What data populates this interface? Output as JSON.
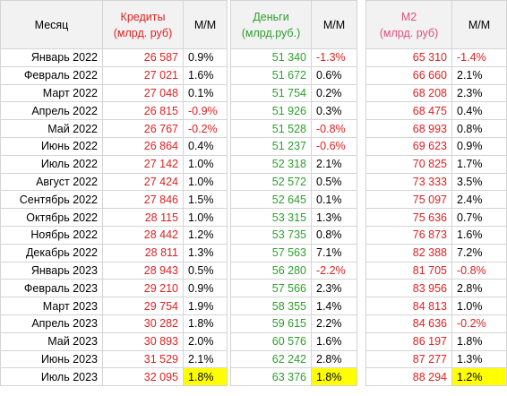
{
  "headers": {
    "month": "Месяц",
    "credits_line1": "Кредиты",
    "credits_line2": "(млрд. руб)",
    "mm": "М/М",
    "money_line1": "Деньги",
    "money_line2": "(млрд.руб.)",
    "m2_line1": "М2",
    "m2_line2": "(млрд. руб)"
  },
  "colors": {
    "credits": "#e02020",
    "money": "#2e9e2e",
    "m2": "#e0507a",
    "negative": "#e02020",
    "highlight": "#ffff00"
  },
  "rows": [
    {
      "month": "Январь 2022",
      "credits": "26 587",
      "credits_mm": "0.9%",
      "money": "51 340",
      "money_mm": "-1.3%",
      "m2": "65 310",
      "m2_mm": "-1.4%"
    },
    {
      "month": "Февраль 2022",
      "credits": "27 021",
      "credits_mm": "1.6%",
      "money": "51 672",
      "money_mm": "0.6%",
      "m2": "66 660",
      "m2_mm": "2.1%"
    },
    {
      "month": "Март 2022",
      "credits": "27 048",
      "credits_mm": "0.1%",
      "money": "51 754",
      "money_mm": "0.2%",
      "m2": "68 208",
      "m2_mm": "2.3%"
    },
    {
      "month": "Апрель 2022",
      "credits": "26 815",
      "credits_mm": "-0.9%",
      "money": "51 926",
      "money_mm": "0.3%",
      "m2": "68 475",
      "m2_mm": "0.4%"
    },
    {
      "month": "Май 2022",
      "credits": "26 767",
      "credits_mm": "-0.2%",
      "money": "51 528",
      "money_mm": "-0.8%",
      "m2": "68 993",
      "m2_mm": "0.8%"
    },
    {
      "month": "Июнь 2022",
      "credits": "26 864",
      "credits_mm": "0.4%",
      "money": "51 237",
      "money_mm": "-0.6%",
      "m2": "69 623",
      "m2_mm": "0.9%"
    },
    {
      "month": "Июль 2022",
      "credits": "27 142",
      "credits_mm": "1.0%",
      "money": "52 318",
      "money_mm": "2.1%",
      "m2": "70 825",
      "m2_mm": "1.7%"
    },
    {
      "month": "Август 2022",
      "credits": "27 424",
      "credits_mm": "1.0%",
      "money": "52 572",
      "money_mm": "0.5%",
      "m2": "73 333",
      "m2_mm": "3.5%"
    },
    {
      "month": "Сентябрь 2022",
      "credits": "27 846",
      "credits_mm": "1.5%",
      "money": "52 645",
      "money_mm": "0.1%",
      "m2": "75 097",
      "m2_mm": "2.4%"
    },
    {
      "month": "Октябрь 2022",
      "credits": "28 115",
      "credits_mm": "1.0%",
      "money": "53 315",
      "money_mm": "1.3%",
      "m2": "75 636",
      "m2_mm": "0.7%"
    },
    {
      "month": "Ноябрь 2022",
      "credits": "28 442",
      "credits_mm": "1.2%",
      "money": "53 735",
      "money_mm": "0.8%",
      "m2": "76 873",
      "m2_mm": "1.6%"
    },
    {
      "month": "Декабрь 2022",
      "credits": "28 811",
      "credits_mm": "1.3%",
      "money": "57 563",
      "money_mm": "7.1%",
      "m2": "82 388",
      "m2_mm": "7.2%"
    },
    {
      "month": "Январь 2023",
      "credits": "28 943",
      "credits_mm": "0.5%",
      "money": "56 280",
      "money_mm": "-2.2%",
      "m2": "81 705",
      "m2_mm": "-0.8%"
    },
    {
      "month": "Февраль 2023",
      "credits": "29 210",
      "credits_mm": "0.9%",
      "money": "57 566",
      "money_mm": "2.3%",
      "m2": "83 956",
      "m2_mm": "2.8%"
    },
    {
      "month": "Март 2023",
      "credits": "29 754",
      "credits_mm": "1.9%",
      "money": "58 355",
      "money_mm": "1.4%",
      "m2": "84 813",
      "m2_mm": "1.0%"
    },
    {
      "month": "Апрель 2023",
      "credits": "30 282",
      "credits_mm": "1.8%",
      "money": "59 615",
      "money_mm": "2.2%",
      "m2": "84 636",
      "m2_mm": "-0.2%"
    },
    {
      "month": "Май 2023",
      "credits": "30 893",
      "credits_mm": "2.0%",
      "money": "60 576",
      "money_mm": "1.6%",
      "m2": "86 197",
      "m2_mm": "1.8%"
    },
    {
      "month": "Июнь 2023",
      "credits": "31 529",
      "credits_mm": "2.1%",
      "money": "62 242",
      "money_mm": "2.8%",
      "m2": "87 277",
      "m2_mm": "1.3%"
    },
    {
      "month": "Июль 2023",
      "credits": "32 095",
      "credits_mm": "1.8%",
      "money": "63 376",
      "money_mm": "1.8%",
      "m2": "88 294",
      "m2_mm": "1.2%",
      "highlight": true
    }
  ]
}
